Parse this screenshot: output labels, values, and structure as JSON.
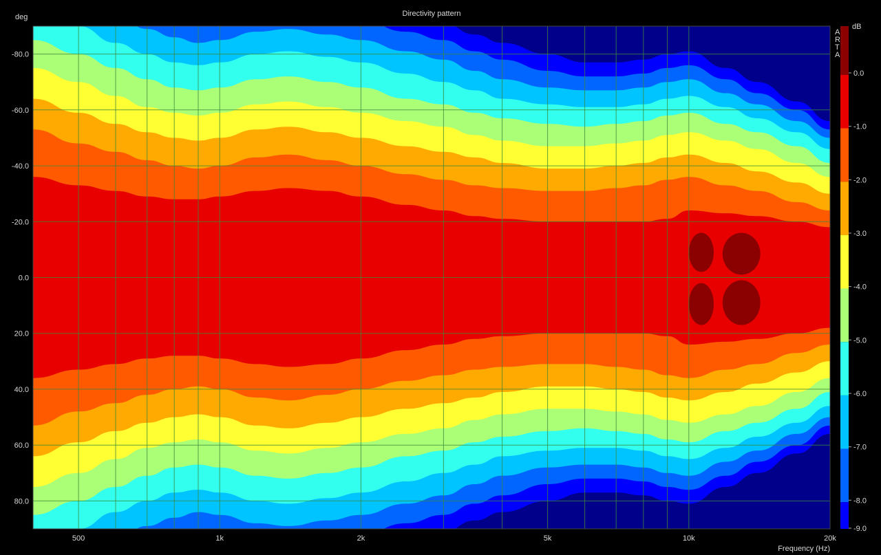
{
  "chart_data": {
    "type": "heatmap",
    "title": "Directivity pattern",
    "xlabel": "Frequency (Hz)",
    "ylabel": "deg",
    "colorbar_label": "dB",
    "watermark": "ARTA",
    "x_scale": "log",
    "xlim": [
      400,
      20000
    ],
    "ylim": [
      -90,
      90
    ],
    "y_inverted": true,
    "grid": true,
    "x_ticks": [
      {
        "value": 500,
        "label": "500"
      },
      {
        "value": 1000,
        "label": "1k"
      },
      {
        "value": 2000,
        "label": "2k"
      },
      {
        "value": 5000,
        "label": "5k"
      },
      {
        "value": 10000,
        "label": "10k"
      },
      {
        "value": 20000,
        "label": "20k"
      }
    ],
    "x_grid": [
      500,
      600,
      700,
      800,
      900,
      1000,
      2000,
      3000,
      4000,
      5000,
      6000,
      7000,
      8000,
      9000,
      10000,
      20000
    ],
    "y_ticks": [
      {
        "value": -80,
        "label": "-80.0"
      },
      {
        "value": -60,
        "label": "-60.0"
      },
      {
        "value": -40,
        "label": "-40.0"
      },
      {
        "value": -20,
        "label": "-20.0"
      },
      {
        "value": 0,
        "label": "0.0"
      },
      {
        "value": 20,
        "label": "20.0"
      },
      {
        "value": 40,
        "label": "40.0"
      },
      {
        "value": 60,
        "label": "60.0"
      },
      {
        "value": 80,
        "label": "80.0"
      }
    ],
    "levels": [
      {
        "label": "0.0",
        "color": "#8b0000"
      },
      {
        "label": "-1.0",
        "color": "#e80000"
      },
      {
        "label": "-2.0",
        "color": "#ff5a00"
      },
      {
        "label": "-3.0",
        "color": "#ffaa00"
      },
      {
        "label": "-4.0",
        "color": "#ffff33"
      },
      {
        "label": "-5.0",
        "color": "#aaff77"
      },
      {
        "label": "-6.0",
        "color": "#33ffee"
      },
      {
        "label": "-7.0",
        "color": "#00c4ff"
      },
      {
        "label": "-8.0",
        "color": "#0066ff"
      },
      {
        "label": "-9.0",
        "color": "#0000ff"
      }
    ],
    "background_color": "#00008b",
    "contours": {
      "frequencies": [
        400,
        500,
        600,
        700,
        800,
        900,
        1000,
        1200,
        1400,
        1700,
        2000,
        2500,
        3000,
        3500,
        4000,
        5000,
        6000,
        7000,
        8000,
        9000,
        10000,
        12000,
        14000,
        17000,
        20000
      ],
      "levels": [
        {
          "db": -1,
          "angle": [
            36,
            33,
            31,
            29,
            28,
            28,
            29,
            31,
            32,
            31,
            29,
            26,
            24,
            22,
            21,
            20,
            20,
            20,
            20,
            21,
            24,
            23,
            22,
            20,
            18
          ]
        },
        {
          "db": -2,
          "angle": [
            53,
            48,
            45,
            42,
            40,
            39,
            40,
            43,
            44,
            42,
            40,
            37,
            35,
            33,
            32,
            31,
            31,
            32,
            33,
            35,
            36,
            33,
            31,
            27,
            24
          ]
        },
        {
          "db": -3,
          "angle": [
            64,
            59,
            55,
            52,
            50,
            49,
            50,
            53,
            54,
            52,
            50,
            47,
            45,
            43,
            41,
            39,
            39,
            40,
            41,
            43,
            44,
            41,
            38,
            34,
            30
          ]
        },
        {
          "db": -4,
          "angle": [
            75,
            70,
            65,
            61,
            59,
            58,
            59,
            62,
            63,
            61,
            59,
            56,
            54,
            51,
            49,
            47,
            47,
            48,
            49,
            51,
            52,
            49,
            46,
            41,
            36
          ]
        },
        {
          "db": -5,
          "angle": [
            85,
            80,
            75,
            71,
            68,
            67,
            68,
            71,
            72,
            70,
            68,
            64,
            62,
            59,
            57,
            55,
            54,
            55,
            56,
            58,
            59,
            55,
            52,
            47,
            41
          ]
        },
        {
          "db": -6,
          "angle": [
            95,
            90,
            84,
            80,
            77,
            76,
            77,
            80,
            81,
            79,
            77,
            73,
            70,
            67,
            64,
            62,
            61,
            61,
            62,
            64,
            65,
            61,
            57,
            52,
            46
          ]
        },
        {
          "db": -7,
          "angle": [
            99,
            99,
            94,
            89,
            86,
            84,
            85,
            88,
            89,
            87,
            85,
            81,
            78,
            74,
            71,
            68,
            67,
            67,
            68,
            70,
            71,
            66,
            62,
            56,
            50
          ]
        },
        {
          "db": -8,
          "angle": [
            99,
            99,
            99,
            97,
            94,
            92,
            93,
            96,
            97,
            95,
            92,
            88,
            85,
            81,
            78,
            74,
            72,
            72,
            73,
            75,
            76,
            71,
            66,
            60,
            53
          ]
        },
        {
          "db": -9,
          "angle": [
            99,
            99,
            99,
            99,
            99,
            99,
            99,
            99,
            99,
            99,
            99,
            95,
            91,
            87,
            84,
            80,
            77,
            77,
            78,
            80,
            81,
            75,
            70,
            63,
            56
          ]
        }
      ]
    }
  }
}
